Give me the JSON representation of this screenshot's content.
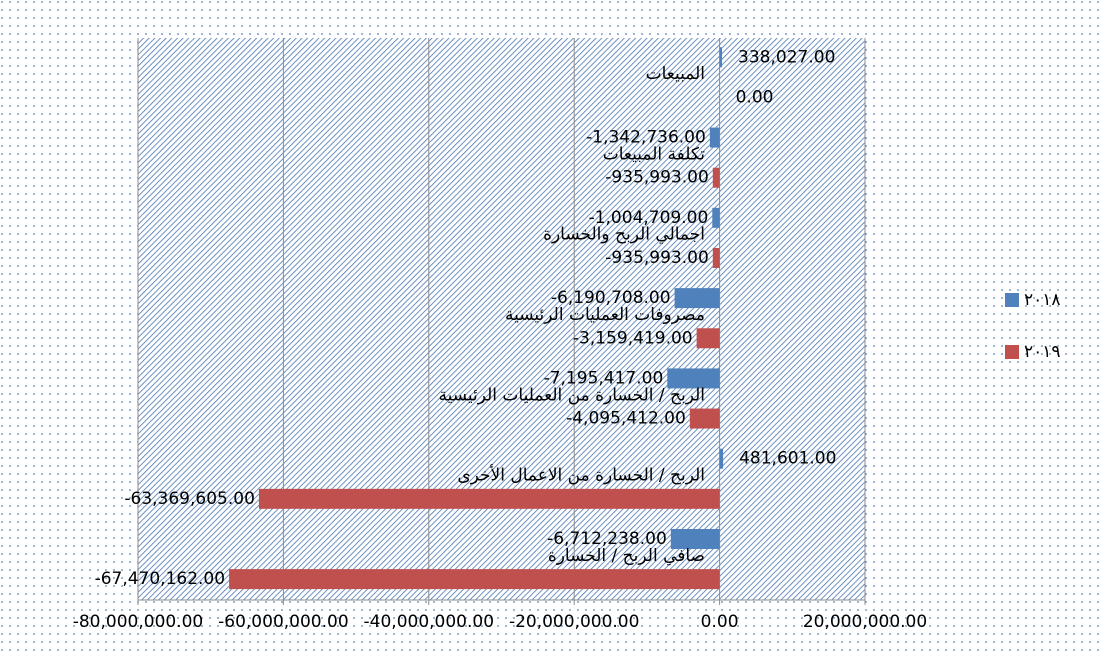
{
  "chart_data": {
    "type": "hbar",
    "categories": [
      "المبيعات",
      "تكلفة المبيعات",
      "اجمالي الربح والخسارة",
      "مصروفات العمليات الرئيسية",
      "الربح / الخسارة من العمليات الرئيسية",
      "الربح / الخسارة من الاعمال الأخرى",
      "صافي الربح / الخسارة"
    ],
    "series": [
      {
        "name": "٢٠١٨",
        "color": "#4f81bd",
        "values": [
          338027,
          -1342736,
          -1004709,
          -6190708,
          -7195417,
          481601,
          -6712238
        ],
        "value_labels": [
          "338,027.00",
          "-1,342,736.00",
          "-1,004,709.00",
          "-6,190,708.00",
          "-7,195,417.00",
          "481,601.00",
          "-6,712,238.00"
        ]
      },
      {
        "name": "٢٠١٩",
        "color": "#c0504d",
        "values": [
          0,
          -935993,
          -935993,
          -3159419,
          -4095412,
          -63369605,
          -67470162
        ],
        "value_labels": [
          "0.00",
          "-935,993.00",
          "-935,993.00",
          "-3,159,419.00",
          "-4,095,412.00",
          "-63,369,605.00",
          "-67,470,162.00"
        ]
      }
    ],
    "xlim": [
      -80000000,
      20000000
    ],
    "xticks": [
      {
        "value": -80000000,
        "label": "-80,000,000.00"
      },
      {
        "value": -60000000,
        "label": "-60,000,000.00"
      },
      {
        "value": -40000000,
        "label": "-40,000,000.00"
      },
      {
        "value": -20000000,
        "label": "-20,000,000.00"
      },
      {
        "value": 0,
        "label": "0.00"
      },
      {
        "value": 20000000,
        "label": "20,000,000.00"
      }
    ],
    "grid": true,
    "legend": "right"
  }
}
